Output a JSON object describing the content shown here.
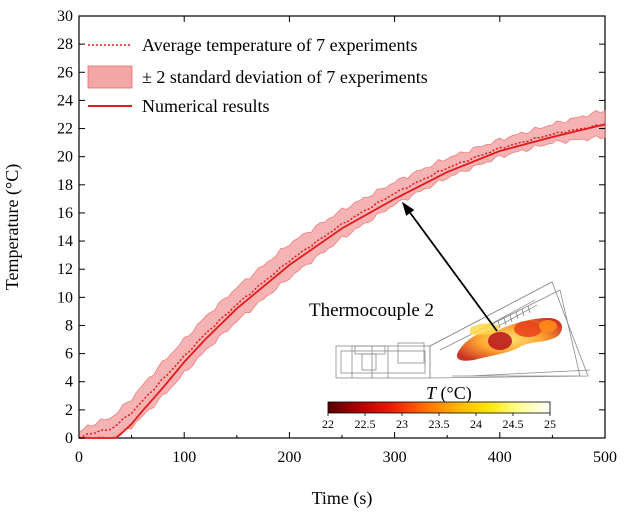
{
  "chart_data": {
    "type": "line",
    "xlabel": "Time (s)",
    "ylabel": "Temperature (°C)",
    "xlim": [
      0,
      500
    ],
    "ylim": [
      0,
      30
    ],
    "xticks": [
      "0",
      "100",
      "200",
      "300",
      "400",
      "500"
    ],
    "yticks": [
      "0",
      "2",
      "4",
      "6",
      "8",
      "10",
      "12",
      "14",
      "16",
      "18",
      "20",
      "22",
      "24",
      "26",
      "28",
      "30"
    ],
    "legend": [
      {
        "label": "Average temperature of 7 experiments",
        "style": "dotted"
      },
      {
        "label": "± 2 standard deviation of 7 experiments",
        "style": "band"
      },
      {
        "label": "Numerical results",
        "style": "solid"
      }
    ],
    "series": [
      {
        "name": "Average temperature of 7 experiments",
        "x": [
          0,
          10,
          20,
          30,
          40,
          50,
          60,
          80,
          100,
          120,
          150,
          200,
          250,
          300,
          350,
          400,
          450,
          500
        ],
        "y": [
          0,
          0.3,
          0.5,
          0.6,
          1.2,
          1.8,
          2.6,
          4.2,
          5.8,
          7.4,
          9.5,
          12.6,
          15.2,
          17.4,
          19.2,
          20.6,
          21.6,
          22.3
        ]
      },
      {
        "name": "± 2 standard deviation of 7 experiments",
        "x": [
          0,
          10,
          20,
          30,
          40,
          50,
          60,
          80,
          100,
          120,
          150,
          200,
          250,
          300,
          350,
          400,
          450,
          500
        ],
        "upper": [
          0.4,
          0.9,
          1.2,
          1.4,
          2.1,
          2.8,
          3.7,
          5.4,
          7.0,
          8.6,
          10.7,
          13.8,
          16.2,
          18.2,
          19.9,
          21.2,
          22.3,
          23.3
        ],
        "lower": [
          0,
          0,
          0,
          0,
          0.4,
          0.8,
          1.5,
          3.0,
          4.6,
          6.2,
          8.3,
          11.4,
          14.2,
          16.6,
          18.5,
          20.0,
          21.0,
          21.4
        ]
      },
      {
        "name": "Numerical results",
        "x": [
          0,
          35,
          40,
          50,
          60,
          80,
          100,
          120,
          150,
          200,
          250,
          300,
          350,
          400,
          450,
          500
        ],
        "y": [
          0,
          0,
          0.3,
          1.0,
          1.9,
          3.6,
          5.4,
          7.0,
          9.2,
          12.3,
          14.9,
          17.0,
          18.9,
          20.4,
          21.4,
          22.3
        ]
      }
    ],
    "annotation": {
      "label": "Thermocouple 2",
      "arrow_to": {
        "x": 307,
        "y": 16.8
      }
    },
    "colorbar": {
      "title_symbol": "T",
      "title_unit": " (°C)",
      "ticks": [
        "22",
        "22.5",
        "23",
        "23.5",
        "24",
        "24.5",
        "25"
      ],
      "colors": [
        "#5a0000",
        "#b00000",
        "#e81e00",
        "#ff6a00",
        "#ffb000",
        "#ffe400",
        "#ffff90",
        "#ffffff"
      ]
    }
  },
  "colors": {
    "series": "#e31a1c",
    "band": "#f4a6a6",
    "band_stroke": "#e76b6b"
  }
}
